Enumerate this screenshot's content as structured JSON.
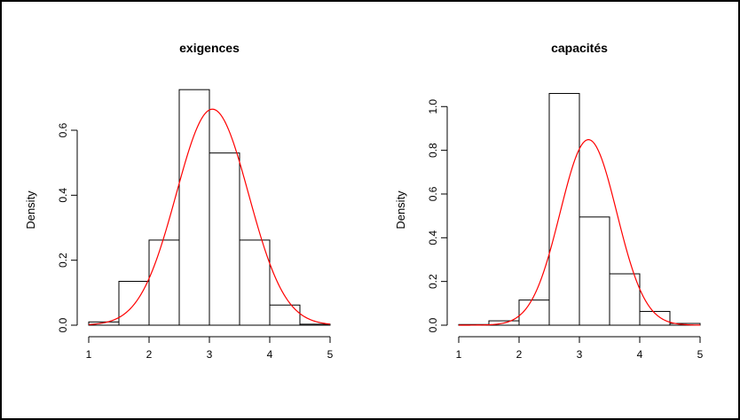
{
  "chart_data": [
    {
      "type": "bar",
      "title": "exigences",
      "xlabel": "",
      "ylabel": "Density",
      "xlim": [
        1,
        5
      ],
      "ylim": [
        0,
        0.72
      ],
      "xticks": [
        "1",
        "2",
        "3",
        "4",
        "5"
      ],
      "yticks": [
        "0.0",
        "0.2",
        "0.4",
        "0.6"
      ],
      "bin_edges": [
        1.0,
        1.5,
        2.0,
        2.5,
        3.0,
        3.5,
        4.0,
        4.5,
        5.0
      ],
      "values": [
        0.01,
        0.135,
        0.262,
        0.725,
        0.53,
        0.262,
        0.062,
        0.003
      ],
      "series": [
        {
          "values": [
            0.01,
            0.135,
            0.262,
            0.725,
            0.53,
            0.262,
            0.062,
            0.003
          ]
        }
      ],
      "density_curve": {
        "mean": 3.05,
        "sd": 0.6,
        "color": "#ff0000"
      },
      "grid": false
    },
    {
      "type": "bar",
      "title": "capacités",
      "xlabel": "",
      "ylabel": "Density",
      "xlim": [
        1,
        5
      ],
      "ylim": [
        0,
        1.07
      ],
      "xticks": [
        "1",
        "2",
        "3",
        "4",
        "5"
      ],
      "yticks": [
        "0.0",
        "0.2",
        "0.4",
        "0.6",
        "0.8",
        "1.0"
      ],
      "bin_edges": [
        1.0,
        1.5,
        2.0,
        2.5,
        3.0,
        3.5,
        4.0,
        4.5,
        5.0
      ],
      "values": [
        0.003,
        0.02,
        0.115,
        1.06,
        0.495,
        0.235,
        0.063,
        0.008
      ],
      "series": [
        {
          "values": [
            0.003,
            0.02,
            0.115,
            1.06,
            0.495,
            0.235,
            0.063,
            0.008
          ]
        }
      ],
      "density_curve": {
        "mean": 3.15,
        "sd": 0.47,
        "color": "#ff0000"
      },
      "grid": false
    }
  ],
  "colors": {
    "bar_stroke": "#000000",
    "bar_fill": "#ffffff",
    "curve": "#ff0000",
    "frame": "#000000"
  }
}
